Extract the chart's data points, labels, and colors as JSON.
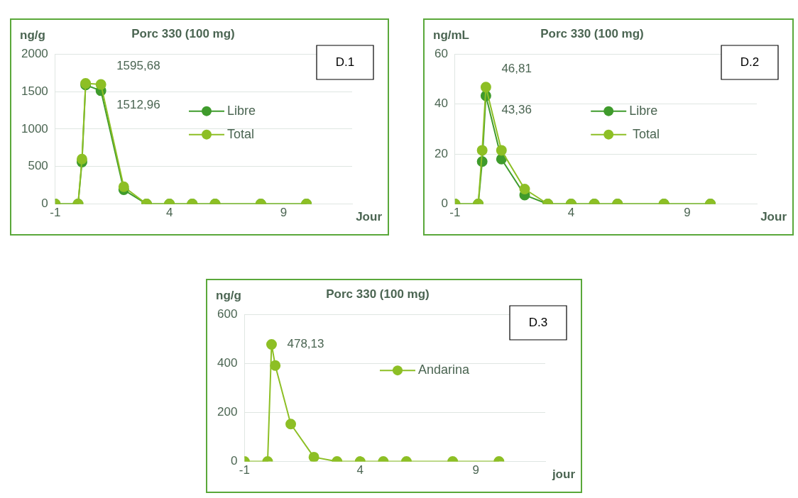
{
  "chart_data": [
    {
      "type": "line",
      "title": "Porc 330 (100 mg)",
      "ylabel": "ng/g",
      "xlabel": "Jour",
      "annotations": [
        "D.1"
      ],
      "xlim": [
        -1,
        12
      ],
      "xticks": [
        -1,
        4,
        9
      ],
      "ylim": [
        0,
        2000
      ],
      "yticks": [
        0,
        500,
        1000,
        1500,
        2000
      ],
      "grid": "y",
      "legend": "right",
      "marker": "circle",
      "x": [
        -1,
        0,
        0.17,
        0.33,
        1,
        2,
        3,
        4,
        5,
        6,
        8,
        10
      ],
      "series": [
        {
          "name": "Libre",
          "color": "#3f9b2c",
          "values": [
            0,
            0,
            560,
            1590,
            1512.96,
            190,
            0,
            0,
            0,
            0,
            0,
            0
          ],
          "value_labels": [
            null,
            null,
            null,
            null,
            "1512,96",
            null,
            null,
            null,
            null,
            null,
            null,
            null
          ]
        },
        {
          "name": "Total",
          "color": "#8dbf25",
          "values": [
            0,
            0,
            600,
            1610,
            1595.68,
            230,
            0,
            0,
            0,
            0,
            0,
            0
          ],
          "value_labels": [
            null,
            null,
            null,
            null,
            "1595,68",
            null,
            null,
            null,
            null,
            null,
            null,
            null
          ]
        }
      ]
    },
    {
      "type": "line",
      "title": "Porc 330 (100 mg)",
      "ylabel": "ng/mL",
      "xlabel": "Jour",
      "annotations": [
        "D.2"
      ],
      "xlim": [
        -1,
        12
      ],
      "xticks": [
        -1,
        4,
        9
      ],
      "ylim": [
        0,
        60
      ],
      "yticks": [
        0,
        20,
        40,
        60
      ],
      "grid": "y",
      "legend": "right",
      "marker": "circle",
      "x": [
        -1,
        0,
        0.17,
        0.33,
        1,
        2,
        3,
        4,
        5,
        6,
        8,
        10
      ],
      "series": [
        {
          "name": "Libre",
          "color": "#3f9b2c",
          "values": [
            0,
            0,
            17,
            43.36,
            18,
            3.6,
            0,
            0,
            0,
            0,
            0,
            0
          ],
          "value_labels": [
            null,
            null,
            null,
            "43,36",
            null,
            null,
            null,
            null,
            null,
            null,
            null,
            null
          ]
        },
        {
          "name": " Total",
          "color": "#8dbf25",
          "values": [
            0,
            0,
            21.5,
            46.81,
            21.5,
            6,
            0,
            0,
            0,
            0,
            0,
            0
          ],
          "value_labels": [
            null,
            null,
            null,
            "46,81",
            null,
            null,
            null,
            null,
            null,
            null,
            null,
            null
          ]
        }
      ]
    },
    {
      "type": "line",
      "title": "Porc 330 (100 mg)",
      "ylabel": "ng/g",
      "xlabel": "jour",
      "annotations": [
        "D.3"
      ],
      "xlim": [
        -1,
        12
      ],
      "xticks": [
        -1,
        4,
        9
      ],
      "ylim": [
        0,
        600
      ],
      "yticks": [
        0,
        200,
        400,
        600
      ],
      "grid": "y",
      "legend": "right",
      "marker": "circle",
      "x": [
        -1,
        0,
        0.17,
        0.33,
        1,
        2,
        3,
        4,
        5,
        6,
        8,
        10
      ],
      "series": [
        {
          "name": "Andarina",
          "color": "#8dbf25",
          "values": [
            0,
            0,
            478.13,
            392,
            153,
            18,
            0,
            0,
            0,
            0,
            0,
            0
          ],
          "value_labels": [
            null,
            null,
            "478,13",
            null,
            null,
            null,
            null,
            null,
            null,
            null,
            null,
            null
          ]
        }
      ]
    }
  ]
}
